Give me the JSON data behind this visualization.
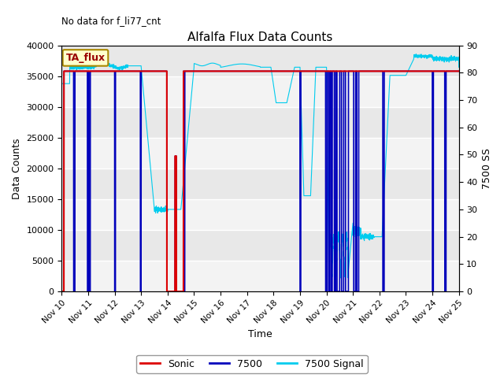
{
  "title": "Alfalfa Flux Data Counts",
  "top_left_text": "No data for f_li77_cnt",
  "xlabel": "Time",
  "ylabel_left": "Data Counts",
  "ylabel_right": "7500 SS",
  "ylim_left": [
    0,
    40000
  ],
  "ylim_right": [
    0,
    90
  ],
  "yticks_left": [
    0,
    5000,
    10000,
    15000,
    20000,
    25000,
    30000,
    35000,
    40000
  ],
  "yticks_right": [
    0,
    10,
    20,
    30,
    40,
    50,
    60,
    70,
    80,
    90
  ],
  "xtick_labels": [
    "Nov 10",
    "Nov 11",
    "Nov 12",
    "Nov 13",
    "Nov 14",
    "Nov 15",
    "Nov 16",
    "Nov 17",
    "Nov 18",
    "Nov 19",
    "Nov 20",
    "Nov 21",
    "Nov 22",
    "Nov 23",
    "Nov 24",
    "Nov 25"
  ],
  "annotation_box": "TA_flux",
  "background_color": "#e8e8e8",
  "sonic_color": "#dd0000",
  "sonic_value": 35800,
  "count7500_color": "#0000bb",
  "signal_color": "#00ccee",
  "legend_labels": [
    "Sonic",
    "7500",
    "7500 Signal"
  ],
  "figsize": [
    6.4,
    4.8
  ],
  "dpi": 100
}
